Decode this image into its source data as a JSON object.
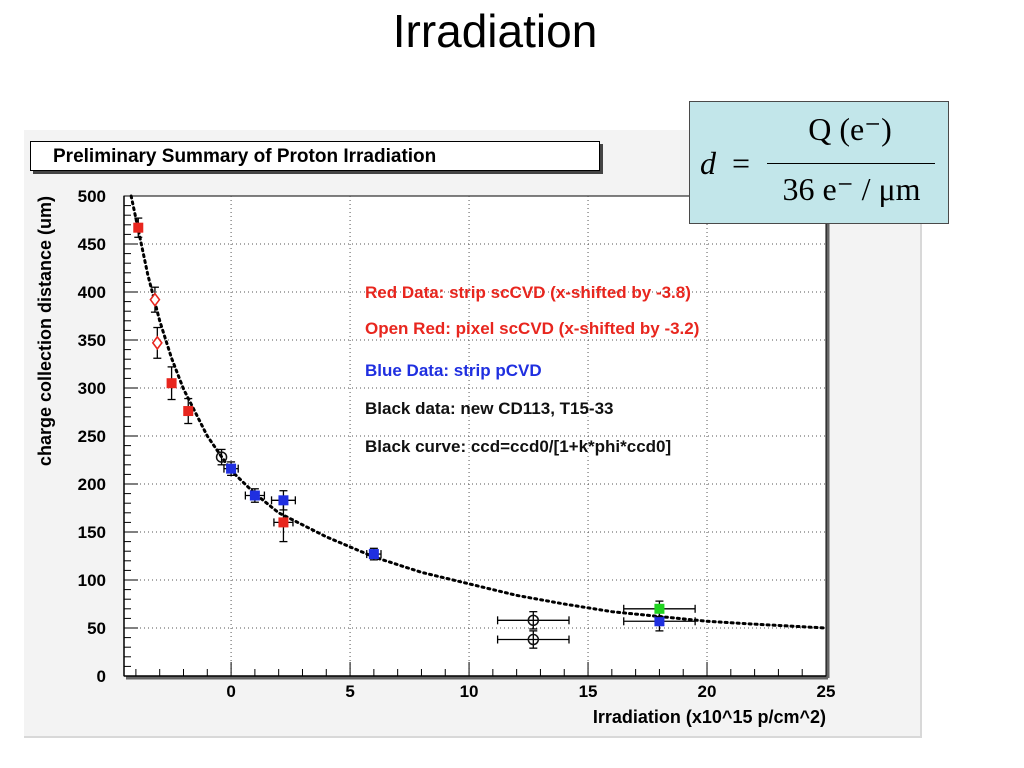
{
  "slide": {
    "title": "Irradiation"
  },
  "chart": {
    "summary_title": "Preliminary Summary of Proton Irradiation"
  },
  "formula": {
    "lhs": "d",
    "eq": "=",
    "numerator": "Q (e⁻)",
    "denominator": "36 e⁻ / μm"
  },
  "chart_data": {
    "type": "scatter",
    "title": "Preliminary Summary of Proton Irradiation",
    "xlabel": "Irradiation (x10^15 p/cm^2)",
    "ylabel": "charge collection distance (um)",
    "xlim": [
      -4.5,
      25
    ],
    "ylim": [
      0,
      500
    ],
    "xticks": [
      0,
      5,
      10,
      15,
      20,
      25
    ],
    "yticks": [
      0,
      50,
      100,
      150,
      200,
      250,
      300,
      350,
      400,
      450,
      500
    ],
    "grid": true,
    "legend_placement": "center-right",
    "legend": [
      {
        "text": "Red Data: strip scCVD  (x-shifted by -3.8)",
        "color": "#e8261e"
      },
      {
        "text": "Open Red: pixel scCVD (x-shifted by -3.2)",
        "color": "#e8261e"
      },
      {
        "text": "Blue Data: strip pCVD",
        "color": "#1f2fe0"
      },
      {
        "text": "Black data: new CD113, T15-33",
        "color": "#111111"
      },
      {
        "text": "Black curve: ccd=ccd0/[1+k*phi*ccd0]",
        "color": "#111111"
      }
    ],
    "series": [
      {
        "name": "Red Data: strip scCVD",
        "color": "#e8261e",
        "marker": "filled-square",
        "points": [
          {
            "x": -3.9,
            "y": 467,
            "yerr": 10
          },
          {
            "x": -2.5,
            "y": 305,
            "yerr": 17
          },
          {
            "x": -1.8,
            "y": 276,
            "yerr": 13
          },
          {
            "x": 2.2,
            "y": 160,
            "yerr": 20,
            "xerr": 0.4
          }
        ]
      },
      {
        "name": "Open Red: pixel scCVD",
        "color": "#e8261e",
        "marker": "open-diamond",
        "points": [
          {
            "x": -3.2,
            "y": 392,
            "yerr": 13
          },
          {
            "x": -3.1,
            "y": 347,
            "yerr": 16
          }
        ]
      },
      {
        "name": "Blue Data: strip pCVD",
        "color": "#1f2fe0",
        "marker": "filled-square",
        "points": [
          {
            "x": 0.0,
            "y": 216,
            "yerr": 7,
            "xerr": 0.3
          },
          {
            "x": 1.0,
            "y": 188,
            "yerr": 7,
            "xerr": 0.4
          },
          {
            "x": 2.2,
            "y": 183,
            "yerr": 10,
            "xerr": 0.5
          },
          {
            "x": 6.0,
            "y": 127,
            "yerr": 6,
            "xerr": 0.3
          },
          {
            "x": 18.0,
            "y": 57,
            "yerr": 10,
            "xerr": 1.5
          }
        ]
      },
      {
        "name": "Black data: new CD113, T15-33",
        "color": "#111111",
        "marker": "open-circle",
        "points": [
          {
            "x": -0.4,
            "y": 228,
            "yerr": 8
          },
          {
            "x": 12.7,
            "y": 58,
            "yerr": 9,
            "xerr": 1.5
          },
          {
            "x": 12.7,
            "y": 38,
            "yerr": 9,
            "xerr": 1.5
          }
        ]
      },
      {
        "name": "green point",
        "color": "#1fd41f",
        "marker": "filled-square",
        "points": [
          {
            "x": 18.0,
            "y": 70,
            "yerr": 8,
            "xerr": 1.5
          }
        ]
      }
    ],
    "curve": {
      "formula": "ccd=ccd0/[1+k*phi*ccd0]",
      "color": "#000000",
      "style": "dotted",
      "points": [
        {
          "x": -4.2,
          "y": 500
        },
        {
          "x": -3.5,
          "y": 418
        },
        {
          "x": -3.0,
          "y": 370
        },
        {
          "x": -2.5,
          "y": 331
        },
        {
          "x": -2.0,
          "y": 299
        },
        {
          "x": -1.0,
          "y": 250
        },
        {
          "x": 0.0,
          "y": 214
        },
        {
          "x": 1.0,
          "y": 190
        },
        {
          "x": 2.0,
          "y": 170
        },
        {
          "x": 4.0,
          "y": 145
        },
        {
          "x": 6.0,
          "y": 124
        },
        {
          "x": 8.0,
          "y": 108
        },
        {
          "x": 10.0,
          "y": 96
        },
        {
          "x": 12.0,
          "y": 84
        },
        {
          "x": 14.0,
          "y": 75
        },
        {
          "x": 16.0,
          "y": 67
        },
        {
          "x": 18.0,
          "y": 62
        },
        {
          "x": 20.0,
          "y": 57
        },
        {
          "x": 22.0,
          "y": 54
        },
        {
          "x": 25.0,
          "y": 50
        }
      ]
    }
  }
}
